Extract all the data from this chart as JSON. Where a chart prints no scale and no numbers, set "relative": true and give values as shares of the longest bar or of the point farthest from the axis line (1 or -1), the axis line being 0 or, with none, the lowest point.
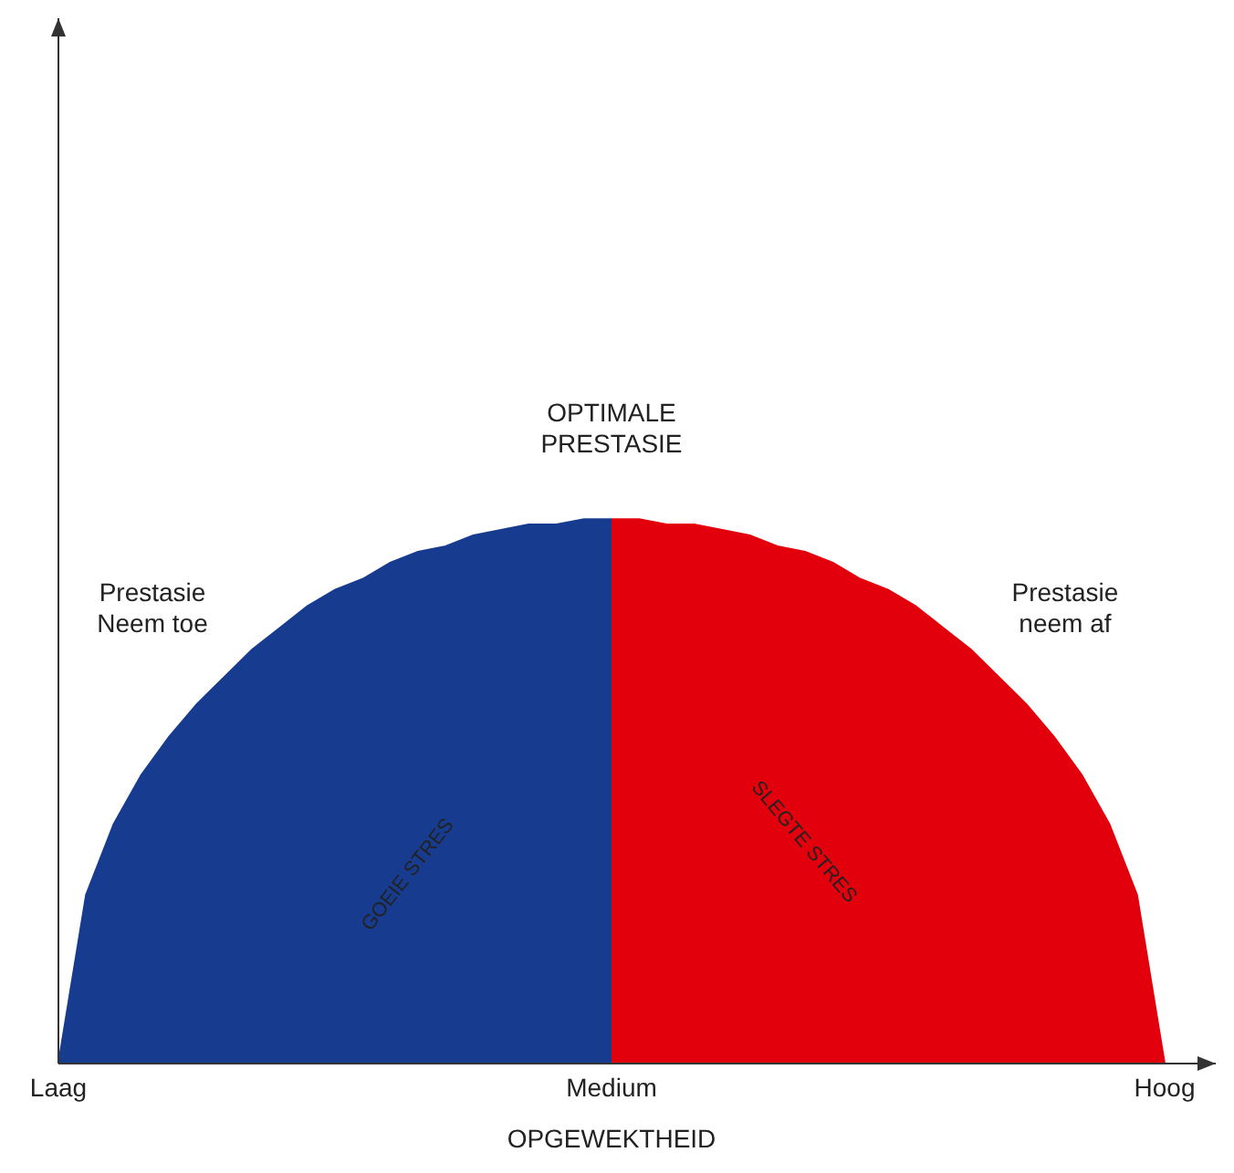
{
  "chart_data": {
    "type": "area",
    "relative": true,
    "xlabel": "OPGEWEKTHEID",
    "categories": [
      "Laag",
      null,
      null,
      null,
      null,
      null,
      null,
      null,
      null,
      null,
      null,
      null,
      null,
      null,
      null,
      null,
      null,
      null,
      null,
      null,
      "Medium",
      null,
      null,
      null,
      null,
      null,
      null,
      null,
      null,
      null,
      null,
      null,
      null,
      null,
      null,
      null,
      null,
      null,
      null,
      null,
      "Hoog"
    ],
    "annotations": [
      "OPTIMALE PRESTASIE",
      "Prestasie Neem toe",
      "Prestasie neem af"
    ],
    "series": [
      {
        "name": "GOEIE STRES",
        "color": "#173c8f",
        "values": [
          0,
          0.31,
          0.44,
          0.53,
          0.6,
          0.66,
          0.71,
          0.76,
          0.8,
          0.84,
          0.87,
          0.89,
          0.92,
          0.94,
          0.95,
          0.97,
          0.98,
          0.99,
          0.99,
          1,
          1,
          null,
          null,
          null,
          null,
          null,
          null,
          null,
          null,
          null,
          null,
          null,
          null,
          null,
          null,
          null,
          null,
          null,
          null,
          null,
          null
        ]
      },
      {
        "name": "SLEGTE STRES",
        "color": "#e2000c",
        "values": [
          null,
          null,
          null,
          null,
          null,
          null,
          null,
          null,
          null,
          null,
          null,
          null,
          null,
          null,
          null,
          null,
          null,
          null,
          null,
          null,
          1,
          1,
          0.99,
          0.99,
          0.98,
          0.97,
          0.95,
          0.94,
          0.92,
          0.89,
          0.87,
          0.84,
          0.8,
          0.76,
          0.71,
          0.66,
          0.6,
          0.53,
          0.44,
          0.31,
          0
        ]
      }
    ]
  }
}
